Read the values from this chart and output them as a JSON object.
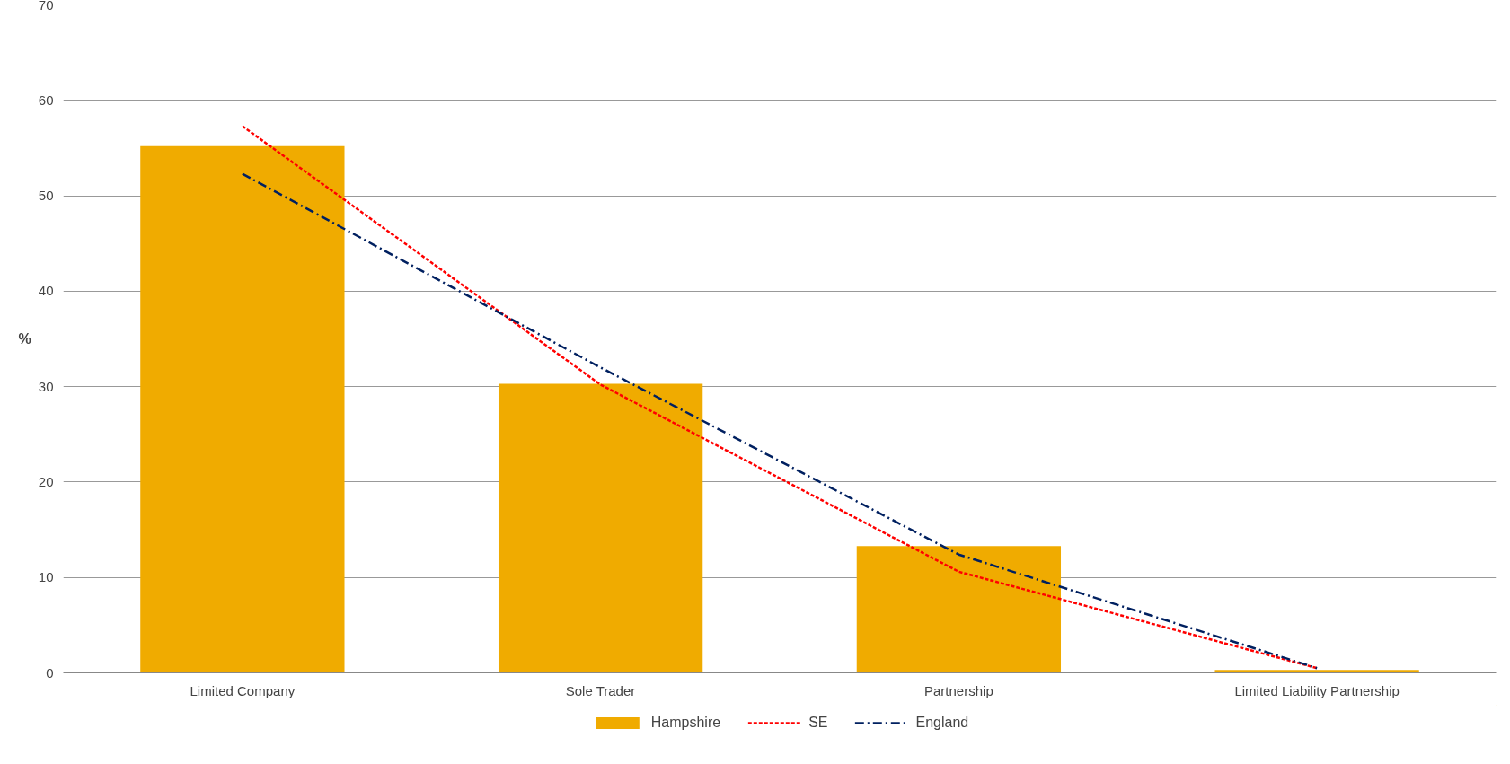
{
  "chart_data": {
    "type": "bar",
    "ylabel": "%",
    "categories": [
      "Limited Company",
      "Sole Trader",
      "Partnership",
      "Limited Liability Partnership"
    ],
    "series": [
      {
        "name": "Hampshire",
        "type": "bar",
        "color": "#f0ab00",
        "values": [
          55.2,
          30.3,
          13.3,
          0.3
        ]
      },
      {
        "name": "SE",
        "type": "line",
        "color": "#ff0000",
        "line_style": "dashed",
        "values": [
          57.3,
          30.2,
          10.6,
          0.5
        ]
      },
      {
        "name": "England",
        "type": "line",
        "color": "#002060",
        "line_style": "dashdot",
        "values": [
          52.3,
          32.0,
          12.4,
          0.5
        ]
      }
    ],
    "ylim": [
      0,
      70
    ],
    "yticks": [
      0,
      10,
      20,
      30,
      40,
      50,
      60,
      70
    ],
    "grid": "y",
    "legend": "bottom"
  }
}
